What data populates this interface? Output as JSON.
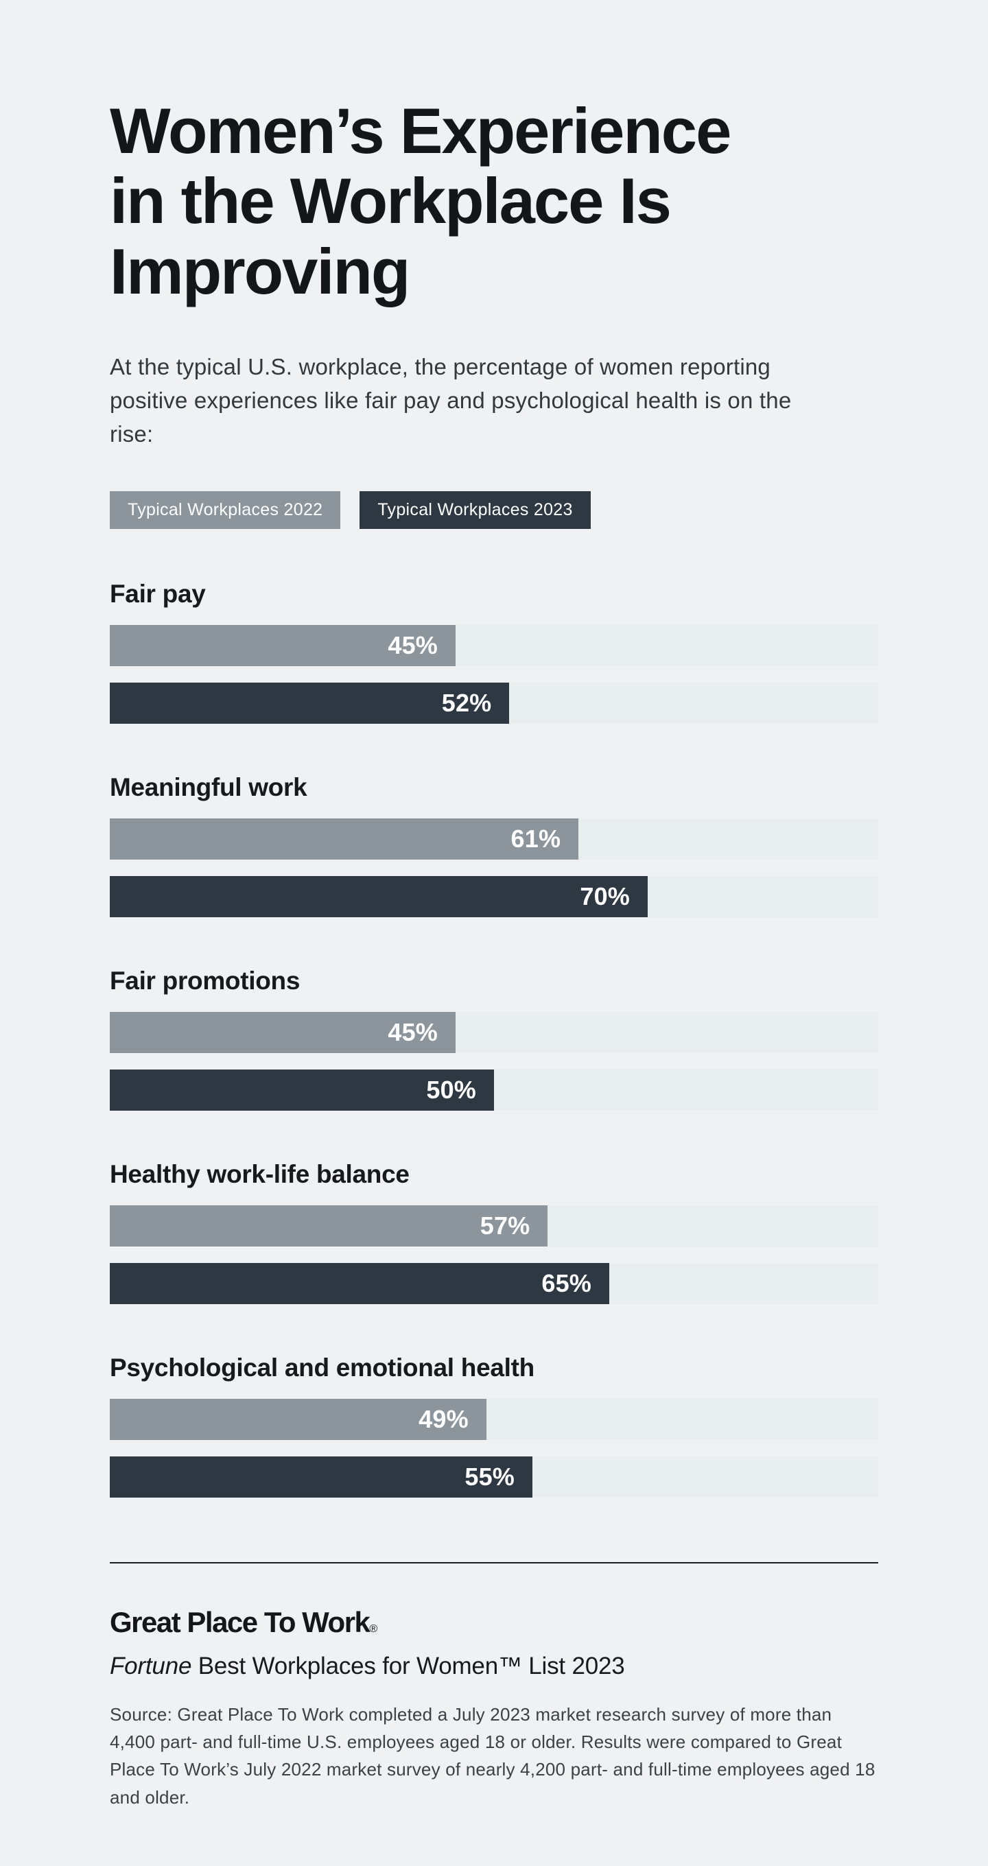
{
  "header": {
    "title_lines": [
      "Women’s Experience",
      "in the Workplace Is",
      "Improving"
    ],
    "subtitle": "At the typical U.S. workplace, the percentage of women reporting positive experiences like fair pay and psychological health is on the rise:"
  },
  "legend": [
    {
      "label": "Typical Workplaces 2022",
      "color": "#8c959c"
    },
    {
      "label": "Typical Workplaces 2023",
      "color": "#2e3842"
    }
  ],
  "chart_data": {
    "type": "bar",
    "orientation": "horizontal",
    "title": "Women’s Experience in the Workplace Is Improving",
    "categories": [
      "Fair pay",
      "Meaningful work",
      "Fair promotions",
      "Healthy work-life balance",
      "Psychological and emotional health"
    ],
    "series": [
      {
        "name": "Typical Workplaces 2022",
        "color": "#8c959c",
        "values": [
          45,
          61,
          45,
          57,
          49
        ]
      },
      {
        "name": "Typical Workplaces 2023",
        "color": "#2e3842",
        "values": [
          52,
          70,
          50,
          65,
          55
        ]
      }
    ],
    "value_suffix": "%",
    "xlim": [
      0,
      100
    ],
    "track_color": "#e8edee",
    "grid": false,
    "legend_position": "top"
  },
  "footer": {
    "logo_text": "Great Place To Work",
    "logo_reg": "®",
    "fortune_italic": "Fortune",
    "fortune_rest": " Best Workplaces for Women™ List 2023",
    "source": "Source: Great Place To Work completed a July 2023 market research survey of more than 4,400 part- and full-time U.S. employees aged 18 or older. Results were compared to Great Place To Work’s July 2022 market survey of nearly 4,200 part- and full-time employees aged 18 and older."
  }
}
